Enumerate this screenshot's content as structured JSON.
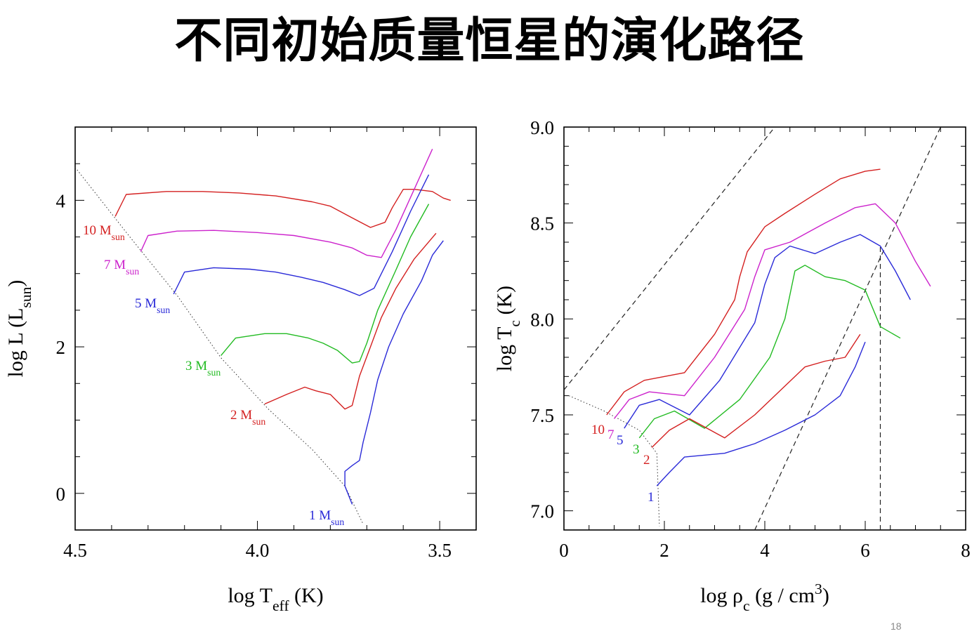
{
  "slide": {
    "title": "不同初始质量恒星的演化路径",
    "page_number": "18"
  },
  "colors": {
    "10": "#d42020",
    "7": "#cc22cc",
    "5": "#2a2ad8",
    "3": "#22bb22",
    "2": "#d42020",
    "1": "#2a2ad8"
  },
  "chart_data": [
    {
      "type": "line",
      "name": "HR diagram",
      "xlabel": {
        "main": "log T",
        "sub": "eff",
        "suffix": " (K)"
      },
      "ylabel": {
        "main": "log L (L",
        "sub": "sun",
        "suffix": ")"
      },
      "xlim": [
        4.5,
        3.4
      ],
      "ylim": [
        -0.5,
        5.0
      ],
      "x_ticks": [
        "4.5",
        "4.0",
        "3.5"
      ],
      "y_ticks": [
        "0",
        "2",
        "4"
      ],
      "series": [
        {
          "mass": "10",
          "label": "10 M",
          "sub": "sun",
          "x": [
            4.39,
            4.36,
            4.25,
            4.15,
            4.05,
            3.95,
            3.85,
            3.8,
            3.74,
            3.69,
            3.65,
            3.63,
            3.6,
            3.57,
            3.52,
            3.49,
            3.47
          ],
          "y": [
            3.78,
            4.08,
            4.12,
            4.12,
            4.1,
            4.06,
            3.98,
            3.92,
            3.76,
            3.63,
            3.7,
            3.9,
            4.15,
            4.15,
            4.12,
            4.03,
            4.0
          ]
        },
        {
          "mass": "7",
          "label": "7 M",
          "sub": "sun",
          "x": [
            4.32,
            4.3,
            4.22,
            4.12,
            4.0,
            3.9,
            3.8,
            3.74,
            3.7,
            3.66,
            3.62,
            3.57,
            3.52
          ],
          "y": [
            3.3,
            3.52,
            3.58,
            3.59,
            3.56,
            3.52,
            3.43,
            3.35,
            3.25,
            3.22,
            3.6,
            4.15,
            4.7
          ]
        },
        {
          "mass": "5",
          "label": "5 M",
          "sub": "sun",
          "x": [
            4.23,
            4.2,
            4.12,
            4.02,
            3.95,
            3.88,
            3.82,
            3.76,
            3.72,
            3.68,
            3.63,
            3.58,
            3.53
          ],
          "y": [
            2.72,
            3.02,
            3.08,
            3.06,
            3.02,
            2.95,
            2.88,
            2.78,
            2.7,
            2.8,
            3.3,
            3.85,
            4.35
          ]
        },
        {
          "mass": "3",
          "label": "3 M",
          "sub": "sun",
          "x": [
            4.1,
            4.06,
            3.98,
            3.92,
            3.86,
            3.82,
            3.78,
            3.74,
            3.72,
            3.7,
            3.67,
            3.62,
            3.58,
            3.53
          ],
          "y": [
            1.88,
            2.12,
            2.18,
            2.18,
            2.12,
            2.05,
            1.95,
            1.78,
            1.8,
            2.05,
            2.5,
            3.05,
            3.5,
            3.95
          ]
        },
        {
          "mass": "2",
          "label": "2 M",
          "sub": "sun",
          "x": [
            3.98,
            3.92,
            3.87,
            3.84,
            3.8,
            3.76,
            3.74,
            3.72,
            3.69,
            3.66,
            3.62,
            3.57,
            3.51
          ],
          "y": [
            1.22,
            1.35,
            1.45,
            1.4,
            1.35,
            1.15,
            1.2,
            1.6,
            2.0,
            2.4,
            2.8,
            3.2,
            3.55
          ]
        },
        {
          "mass": "1",
          "label": "1 M",
          "sub": "sun",
          "x": [
            3.74,
            3.76,
            3.76,
            3.74,
            3.72,
            3.71,
            3.69,
            3.67,
            3.64,
            3.6,
            3.55,
            3.52,
            3.49
          ],
          "y": [
            -0.15,
            0.1,
            0.3,
            0.38,
            0.45,
            0.7,
            1.1,
            1.55,
            2.0,
            2.45,
            2.9,
            3.25,
            3.45
          ]
        }
      ],
      "zams_line": {
        "x": [
          4.5,
          4.35,
          4.22,
          4.1,
          3.97,
          3.85,
          3.76,
          3.71
        ],
        "y": [
          4.45,
          3.5,
          2.7,
          1.85,
          1.15,
          0.6,
          0.1,
          -0.42
        ]
      }
    },
    {
      "type": "line",
      "name": "central density-temperature",
      "xlabel": {
        "main": "log ρ",
        "sub": "c",
        "suffix": " (g / cm",
        "sup": "3",
        "end": ")"
      },
      "ylabel": {
        "main": "log T",
        "sub": "c",
        "suffix": " (K)"
      },
      "xlim": [
        0,
        8
      ],
      "ylim": [
        6.9,
        9.0
      ],
      "x_ticks": [
        "0",
        "2",
        "4",
        "6",
        "8"
      ],
      "y_ticks": [
        "7.0",
        "7.5",
        "8.0",
        "8.5",
        "9.0"
      ],
      "series": [
        {
          "mass": "10",
          "label": "10",
          "x": [
            0.85,
            1.2,
            1.6,
            2.4,
            3.0,
            3.4,
            3.5,
            3.65,
            4.0,
            4.4,
            5.0,
            5.5,
            6.0,
            6.3
          ],
          "y": [
            7.5,
            7.62,
            7.68,
            7.72,
            7.92,
            8.1,
            8.22,
            8.35,
            8.48,
            8.55,
            8.65,
            8.73,
            8.77,
            8.78
          ]
        },
        {
          "mass": "7",
          "label": "7",
          "x": [
            1.0,
            1.3,
            1.7,
            2.4,
            3.0,
            3.6,
            3.8,
            4.0,
            4.5,
            5.2,
            5.8,
            6.2,
            6.6,
            7.0,
            7.3
          ],
          "y": [
            7.48,
            7.58,
            7.62,
            7.6,
            7.8,
            8.05,
            8.22,
            8.36,
            8.4,
            8.5,
            8.58,
            8.6,
            8.5,
            8.3,
            8.17
          ]
        },
        {
          "mass": "5",
          "label": "5",
          "x": [
            1.2,
            1.5,
            1.9,
            2.5,
            3.1,
            3.8,
            4.0,
            4.2,
            4.5,
            5.0,
            5.5,
            5.9,
            6.3,
            6.6,
            6.9
          ],
          "y": [
            7.43,
            7.55,
            7.58,
            7.5,
            7.68,
            7.98,
            8.18,
            8.32,
            8.38,
            8.34,
            8.4,
            8.44,
            8.38,
            8.25,
            8.1
          ]
        },
        {
          "mass": "3",
          "label": "3",
          "x": [
            1.5,
            1.8,
            2.2,
            2.8,
            3.5,
            4.1,
            4.4,
            4.6,
            4.8,
            5.2,
            5.6,
            6.0,
            6.3,
            6.7
          ],
          "y": [
            7.38,
            7.48,
            7.52,
            7.43,
            7.58,
            7.8,
            8.0,
            8.25,
            8.28,
            8.22,
            8.2,
            8.15,
            7.96,
            7.9
          ]
        },
        {
          "mass": "2",
          "label": "2",
          "x": [
            1.75,
            2.1,
            2.5,
            3.2,
            3.8,
            4.4,
            4.8,
            5.2,
            5.6,
            5.9
          ],
          "y": [
            7.33,
            7.42,
            7.48,
            7.38,
            7.5,
            7.65,
            7.75,
            7.78,
            7.8,
            7.92
          ]
        },
        {
          "mass": "1",
          "label": "1",
          "x": [
            1.85,
            2.1,
            2.4,
            3.2,
            3.8,
            4.4,
            5.0,
            5.5,
            5.8,
            6.0
          ],
          "y": [
            7.13,
            7.2,
            7.28,
            7.3,
            7.35,
            7.42,
            7.5,
            7.6,
            7.75,
            7.88
          ]
        }
      ],
      "dashed_lines": [
        {
          "x": [
            0.0,
            4.2
          ],
          "y": [
            7.63,
            9.0
          ]
        },
        {
          "x": [
            3.8,
            7.5
          ],
          "y": [
            6.9,
            9.0
          ]
        },
        {
          "x": [
            6.3,
            6.3
          ],
          "y": [
            6.9,
            8.38
          ]
        }
      ],
      "dotted_line": {
        "x": [
          0.1,
          0.8,
          1.5,
          1.85,
          1.9
        ],
        "y": [
          7.6,
          7.52,
          7.42,
          7.3,
          6.92
        ]
      }
    }
  ]
}
